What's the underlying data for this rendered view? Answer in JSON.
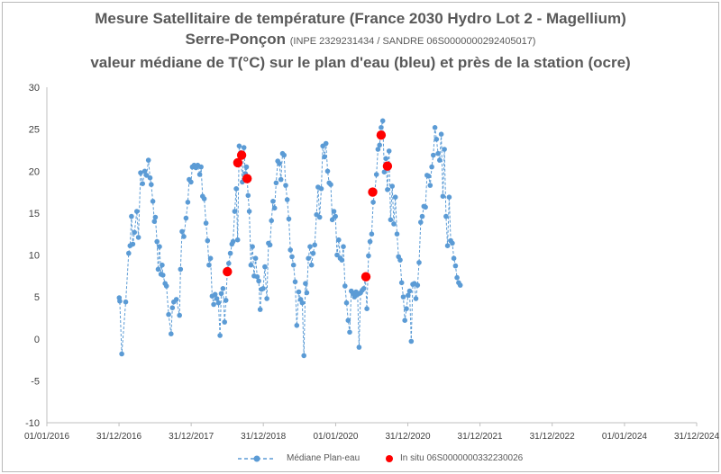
{
  "chart_data": {
    "type": "scatter",
    "title": "Mesure Satellitaire de température (France 2030 Hydro Lot 2 - Magellium)",
    "subtitle_main": "Serre-Ponçon",
    "subtitle_ids": "(INPE 2329231434 / SANDRE 06S0000000292405017)",
    "subtitle2": "valeur médiane de T(°C) sur le plan d'eau (bleu) et près de la station (ocre)",
    "ylim": [
      -10,
      30
    ],
    "yticks": [
      "-10",
      "-5",
      "0",
      "5",
      "10",
      "15",
      "20",
      "25",
      "30"
    ],
    "xlim": [
      "2016-01-01",
      "2024-12-31"
    ],
    "xticks": [
      "01/01/2016",
      "31/12/2016",
      "31/12/2017",
      "31/12/2018",
      "01/01/2020",
      "31/12/2020",
      "31/12/2021",
      "31/12/2022",
      "01/01/2024",
      "31/12/2024"
    ],
    "xtick_dates": [
      "2016-01-01",
      "2016-12-31",
      "2017-12-31",
      "2018-12-31",
      "2020-01-01",
      "2020-12-31",
      "2021-12-31",
      "2022-12-31",
      "2024-01-01",
      "2024-12-31"
    ],
    "grid": false,
    "legend_position": "bottom",
    "series": [
      {
        "name": "Médiane Plan-eau",
        "color": "#5b9bd5",
        "style": "dashed-line-with-markers",
        "points": [
          [
            "2017-01-01",
            4.9
          ],
          [
            "2017-01-04",
            4.5
          ],
          [
            "2017-01-14",
            -1.8
          ],
          [
            "2017-02-03",
            4.4
          ],
          [
            "2017-02-18",
            10.2
          ],
          [
            "2017-02-25",
            11.1
          ],
          [
            "2017-03-04",
            14.6
          ],
          [
            "2017-03-11",
            11.3
          ],
          [
            "2017-03-19",
            12.7
          ],
          [
            "2017-03-31",
            15.2
          ],
          [
            "2017-04-08",
            12.1
          ],
          [
            "2017-04-19",
            19.8
          ],
          [
            "2017-04-29",
            18.5
          ],
          [
            "2017-05-10",
            20.0
          ],
          [
            "2017-05-19",
            19.5
          ],
          [
            "2017-05-29",
            21.3
          ],
          [
            "2017-06-06",
            19.2
          ],
          [
            "2017-06-12",
            18.4
          ],
          [
            "2017-06-20",
            16.4
          ],
          [
            "2017-06-28",
            14.0
          ],
          [
            "2017-07-03",
            14.5
          ],
          [
            "2017-07-11",
            11.6
          ],
          [
            "2017-07-17",
            8.3
          ],
          [
            "2017-07-24",
            11.0
          ],
          [
            "2017-07-31",
            7.7
          ],
          [
            "2017-08-06",
            8.8
          ],
          [
            "2017-08-10",
            7.6
          ],
          [
            "2017-08-21",
            6.6
          ],
          [
            "2017-08-28",
            6.3
          ],
          [
            "2017-09-08",
            2.9
          ],
          [
            "2017-09-20",
            0.6
          ],
          [
            "2017-09-27",
            3.7
          ],
          [
            "2017-10-04",
            4.4
          ],
          [
            "2017-10-17",
            4.7
          ],
          [
            "2017-11-02",
            2.8
          ],
          [
            "2017-11-07",
            8.3
          ],
          [
            "2017-11-15",
            12.8
          ],
          [
            "2017-11-24",
            12.2
          ],
          [
            "2017-12-05",
            14.4
          ],
          [
            "2017-12-14",
            16.3
          ],
          [
            "2017-12-21",
            19.0
          ],
          [
            "2017-12-30",
            18.7
          ],
          [
            "2018-01-06",
            20.5
          ],
          [
            "2018-01-15",
            20.7
          ],
          [
            "2018-01-24",
            20.4
          ],
          [
            "2018-02-02",
            20.7
          ],
          [
            "2018-02-12",
            19.6
          ],
          [
            "2018-02-19",
            20.5
          ],
          [
            "2018-02-27",
            17.0
          ],
          [
            "2018-03-07",
            16.7
          ],
          [
            "2018-03-16",
            13.8
          ],
          [
            "2018-03-24",
            11.7
          ],
          [
            "2018-03-31",
            8.8
          ],
          [
            "2018-04-08",
            9.6
          ],
          [
            "2018-04-16",
            5.1
          ],
          [
            "2018-04-24",
            4.1
          ],
          [
            "2018-05-01",
            5.3
          ],
          [
            "2018-05-10",
            4.8
          ],
          [
            "2018-05-18",
            4.3
          ],
          [
            "2018-05-26",
            0.4
          ],
          [
            "2018-06-01",
            5.4
          ],
          [
            "2018-06-10",
            6.0
          ],
          [
            "2018-06-18",
            2.0
          ],
          [
            "2018-06-25",
            4.6
          ],
          [
            "2018-07-02",
            8.3
          ],
          [
            "2018-07-09",
            9.0
          ],
          [
            "2018-07-17",
            10.2
          ],
          [
            "2018-07-25",
            11.3
          ],
          [
            "2018-07-31",
            11.6
          ],
          [
            "2018-08-08",
            15.2
          ],
          [
            "2018-08-16",
            17.9
          ],
          [
            "2018-08-23",
            11.8
          ],
          [
            "2018-08-31",
            23.0
          ],
          [
            "2018-09-07",
            22.2
          ],
          [
            "2018-09-16",
            18.7
          ],
          [
            "2018-09-24",
            22.8
          ],
          [
            "2018-10-01",
            19.7
          ],
          [
            "2018-10-07",
            20.5
          ],
          [
            "2018-10-15",
            17.1
          ],
          [
            "2018-10-21",
            15.2
          ],
          [
            "2018-10-29",
            8.8
          ],
          [
            "2018-11-06",
            11.0
          ],
          [
            "2018-11-14",
            7.5
          ],
          [
            "2018-11-22",
            9.6
          ],
          [
            "2018-11-30",
            7.4
          ],
          [
            "2018-12-08",
            6.9
          ],
          [
            "2018-12-15",
            3.5
          ],
          [
            "2018-12-22",
            5.9
          ],
          [
            "2018-12-30",
            6.0
          ],
          [
            "2019-01-08",
            8.6
          ],
          [
            "2019-01-18",
            4.8
          ],
          [
            "2019-01-26",
            11.4
          ],
          [
            "2019-02-03",
            11.2
          ],
          [
            "2019-02-10",
            14.1
          ],
          [
            "2019-02-18",
            16.4
          ],
          [
            "2019-02-26",
            15.6
          ],
          [
            "2019-03-06",
            18.6
          ],
          [
            "2019-03-14",
            21.2
          ],
          [
            "2019-03-22",
            20.9
          ],
          [
            "2019-03-30",
            19.0
          ],
          [
            "2019-04-07",
            22.1
          ],
          [
            "2019-04-15",
            21.9
          ],
          [
            "2019-04-23",
            18.3
          ],
          [
            "2019-05-01",
            16.6
          ],
          [
            "2019-05-09",
            14.3
          ],
          [
            "2019-05-17",
            10.6
          ],
          [
            "2019-05-25",
            9.8
          ],
          [
            "2019-06-02",
            8.8
          ],
          [
            "2019-06-10",
            6.8
          ],
          [
            "2019-06-18",
            1.6
          ],
          [
            "2019-06-28",
            5.6
          ],
          [
            "2019-07-08",
            4.7
          ],
          [
            "2019-07-16",
            4.3
          ],
          [
            "2019-07-24",
            -2.0
          ],
          [
            "2019-08-01",
            6.6
          ],
          [
            "2019-08-08",
            5.5
          ],
          [
            "2019-08-16",
            9.6
          ],
          [
            "2019-08-24",
            11.0
          ],
          [
            "2019-09-01",
            8.8
          ],
          [
            "2019-09-09",
            10.2
          ],
          [
            "2019-09-17",
            11.2
          ],
          [
            "2019-09-26",
            14.8
          ],
          [
            "2019-10-04",
            18.1
          ],
          [
            "2019-10-12",
            14.5
          ],
          [
            "2019-10-20",
            17.9
          ],
          [
            "2019-10-28",
            23.0
          ],
          [
            "2019-11-05",
            21.7
          ],
          [
            "2019-11-13",
            23.3
          ],
          [
            "2019-11-21",
            20.0
          ],
          [
            "2019-11-29",
            18.6
          ],
          [
            "2019-12-07",
            18.4
          ],
          [
            "2019-12-15",
            14.2
          ],
          [
            "2019-12-23",
            15.2
          ],
          [
            "2019-12-31",
            14.6
          ],
          [
            "2020-01-08",
            10.0
          ],
          [
            "2020-01-16",
            11.8
          ],
          [
            "2020-01-24",
            9.6
          ],
          [
            "2020-02-01",
            9.4
          ],
          [
            "2020-02-09",
            11.0
          ],
          [
            "2020-02-17",
            6.3
          ],
          [
            "2020-02-25",
            4.3
          ],
          [
            "2020-03-04",
            2.2
          ],
          [
            "2020-03-12",
            0.8
          ],
          [
            "2020-03-20",
            5.7
          ],
          [
            "2020-03-28",
            5.4
          ],
          [
            "2020-04-05",
            5.0
          ],
          [
            "2020-04-13",
            5.6
          ],
          [
            "2020-04-21",
            5.3
          ],
          [
            "2020-04-28",
            -1.0
          ],
          [
            "2020-05-06",
            5.5
          ],
          [
            "2020-05-14",
            5.8
          ],
          [
            "2020-05-22",
            6.0
          ],
          [
            "2020-05-30",
            7.2
          ],
          [
            "2020-06-07",
            3.6
          ],
          [
            "2020-06-15",
            9.9
          ],
          [
            "2020-06-23",
            11.6
          ],
          [
            "2020-07-01",
            12.5
          ],
          [
            "2020-07-09",
            16.3
          ],
          [
            "2020-07-17",
            17.6
          ],
          [
            "2020-07-25",
            19.6
          ],
          [
            "2020-08-02",
            22.6
          ],
          [
            "2020-08-10",
            23.1
          ],
          [
            "2020-08-18",
            25.2
          ],
          [
            "2020-08-26",
            26.0
          ],
          [
            "2020-09-03",
            19.9
          ],
          [
            "2020-09-11",
            21.5
          ],
          [
            "2020-09-19",
            17.8
          ],
          [
            "2020-09-27",
            22.4
          ],
          [
            "2020-10-05",
            14.2
          ],
          [
            "2020-10-13",
            18.2
          ],
          [
            "2020-10-21",
            13.7
          ],
          [
            "2020-10-29",
            16.9
          ],
          [
            "2020-11-06",
            12.5
          ],
          [
            "2020-11-14",
            9.8
          ],
          [
            "2020-11-22",
            9.4
          ],
          [
            "2020-11-30",
            6.7
          ],
          [
            "2020-12-08",
            5.0
          ],
          [
            "2020-12-16",
            2.2
          ],
          [
            "2020-12-24",
            3.6
          ],
          [
            "2021-01-01",
            5.2
          ],
          [
            "2021-01-09",
            5.7
          ],
          [
            "2021-01-17",
            -0.3
          ],
          [
            "2021-01-25",
            6.5
          ],
          [
            "2021-02-02",
            6.6
          ],
          [
            "2021-02-10",
            4.8
          ],
          [
            "2021-02-18",
            6.4
          ],
          [
            "2021-02-26",
            9.1
          ],
          [
            "2021-03-06",
            13.9
          ],
          [
            "2021-03-14",
            14.6
          ],
          [
            "2021-03-22",
            15.8
          ],
          [
            "2021-03-30",
            15.7
          ],
          [
            "2021-04-07",
            19.5
          ],
          [
            "2021-04-15",
            19.4
          ],
          [
            "2021-04-23",
            18.3
          ],
          [
            "2021-05-01",
            20.5
          ],
          [
            "2021-05-09",
            21.9
          ],
          [
            "2021-05-17",
            25.2
          ],
          [
            "2021-05-25",
            23.8
          ],
          [
            "2021-06-02",
            22.1
          ],
          [
            "2021-06-10",
            21.3
          ],
          [
            "2021-06-18",
            24.4
          ],
          [
            "2021-06-26",
            17.0
          ],
          [
            "2021-07-04",
            22.6
          ],
          [
            "2021-07-12",
            14.6
          ],
          [
            "2021-07-20",
            11.1
          ],
          [
            "2021-07-28",
            16.9
          ],
          [
            "2021-08-05",
            11.7
          ],
          [
            "2021-08-13",
            11.4
          ],
          [
            "2021-08-21",
            9.6
          ],
          [
            "2021-08-29",
            8.7
          ],
          [
            "2021-09-06",
            7.3
          ],
          [
            "2021-09-14",
            6.7
          ],
          [
            "2021-09-22",
            6.4
          ]
        ]
      },
      {
        "name": "In situ 06S0000000332230026",
        "color": "#ff0000",
        "style": "markers",
        "points": [
          [
            "2018-07-02",
            8.0
          ],
          [
            "2018-08-24",
            21.0
          ],
          [
            "2018-09-12",
            21.9
          ],
          [
            "2018-10-10",
            19.1
          ],
          [
            "2020-06-02",
            7.4
          ],
          [
            "2020-07-06",
            17.5
          ],
          [
            "2020-08-18",
            24.3
          ],
          [
            "2020-09-19",
            20.6
          ]
        ]
      }
    ]
  }
}
